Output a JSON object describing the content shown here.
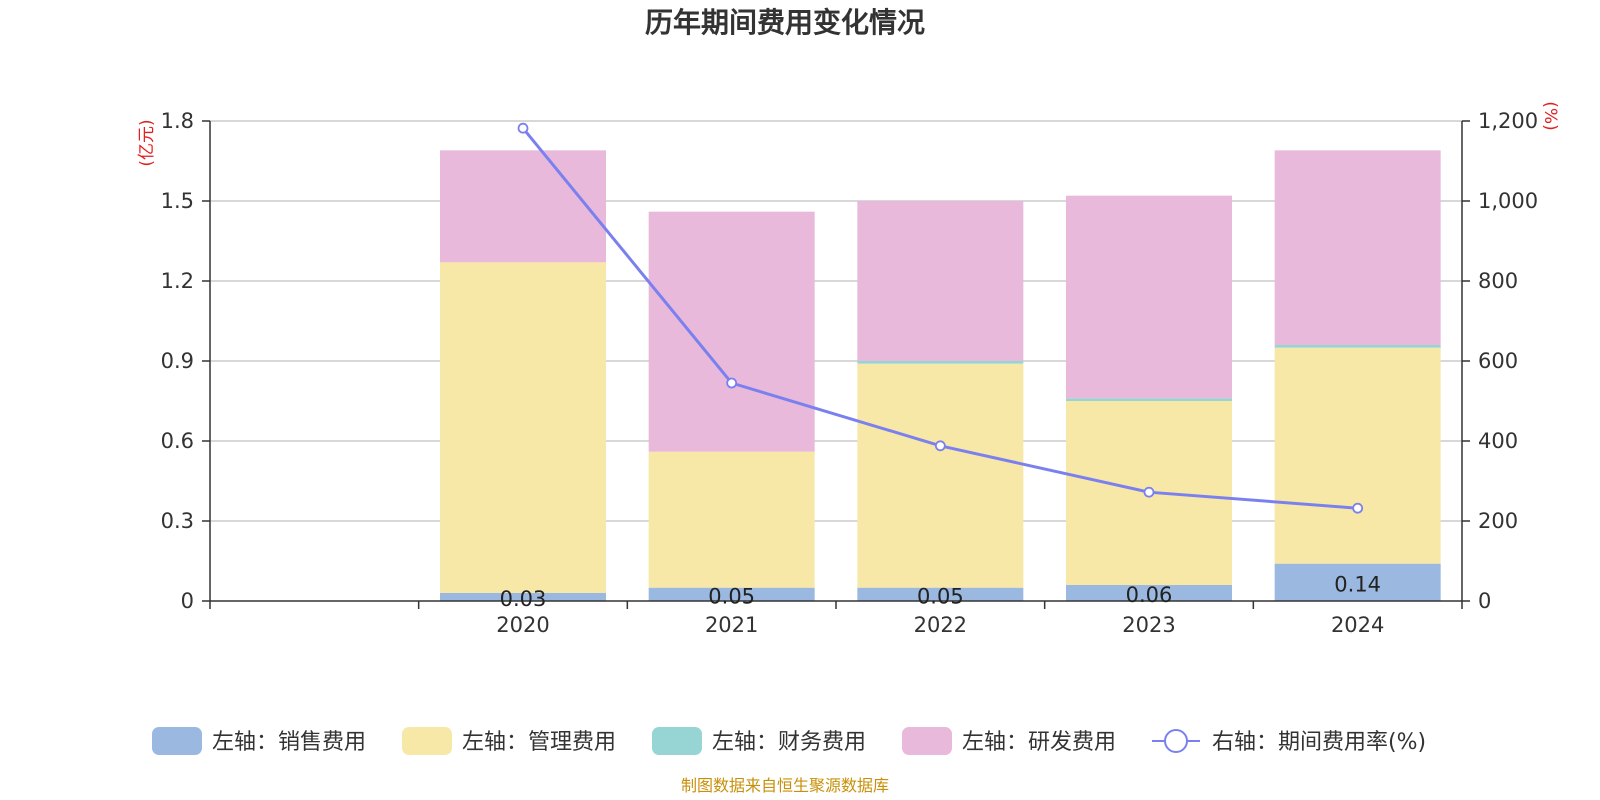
{
  "chart_data": {
    "type": "bar",
    "title": "历年期间费用变化情况",
    "categories": [
      "",
      "2020",
      "2021",
      "2022",
      "2023",
      "2024"
    ],
    "left_axis": {
      "unit_label": "(亿元)",
      "ylim": [
        0,
        1.8
      ],
      "ticks": [
        "0",
        "0.3",
        "0.6",
        "0.9",
        "1.2",
        "1.5",
        "1.8"
      ]
    },
    "right_axis": {
      "unit_label": "(%)",
      "ylim": [
        0,
        1200
      ],
      "ticks": [
        "0",
        "200",
        "400",
        "600",
        "800",
        "1,000",
        "1,200"
      ]
    },
    "grid": true,
    "legend_position": "bottom",
    "series": [
      {
        "name": "左轴：销售费用",
        "kind": "bar",
        "axis": "left",
        "color": "#9bb8e1",
        "values": [
          null,
          0.03,
          0.05,
          0.05,
          0.06,
          0.14
        ],
        "labels": [
          "",
          "0.03",
          "0.05",
          "0.05",
          "0.06",
          "0.14"
        ]
      },
      {
        "name": "左轴：管理费用",
        "kind": "bar",
        "axis": "left",
        "color": "#f8e8a8",
        "values": [
          null,
          1.24,
          0.51,
          0.84,
          0.69,
          0.81
        ]
      },
      {
        "name": "左轴：财务费用",
        "kind": "bar",
        "axis": "left",
        "color": "#97d5d5",
        "values": [
          null,
          0.0,
          0.0,
          0.01,
          0.01,
          0.01
        ]
      },
      {
        "name": "左轴：研发费用",
        "kind": "bar",
        "axis": "left",
        "color": "#e8b9da",
        "values": [
          null,
          0.42,
          0.9,
          0.6,
          0.76,
          0.73
        ]
      },
      {
        "name": "右轴：期间费用率(%)",
        "kind": "line",
        "axis": "right",
        "color": "#7b80ef",
        "values": [
          null,
          1182,
          545,
          388,
          272,
          232
        ]
      }
    ]
  },
  "source_note": "制图数据来自恒生聚源数据库"
}
